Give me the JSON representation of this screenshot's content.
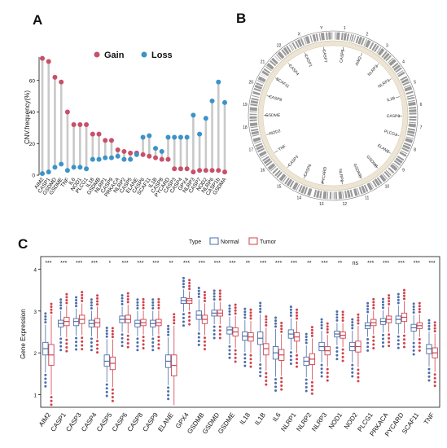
{
  "panels": {
    "a": "A",
    "b": "B",
    "c": "C"
  },
  "colors": {
    "gain": "#c8506a",
    "loss": "#3b93c8",
    "normal": "#4a6ea8",
    "tumor": "#d0414c",
    "stem": "#c9c9c9"
  },
  "chart_data": [
    {
      "type": "lollipop",
      "ylabel": "CNV.frequency(%)",
      "ylim": [
        0,
        80
      ],
      "yticks": [
        0,
        20,
        40,
        60
      ],
      "legend": [
        "Gain",
        "Loss"
      ],
      "legend_position": "top-center",
      "categories": [
        "AIM2",
        "CASP1",
        "GSDMD",
        "GSDME",
        "TNF",
        "IL6",
        "NOD1",
        "PLCG1",
        "IL18",
        "GSDMB",
        "NLRP1",
        "CASP9",
        "PRKACA",
        "NLRP2",
        "CASP5",
        "ELANE",
        "CASP6",
        "SCAF11",
        "IL1B",
        "CASP8",
        "PYCARD",
        "CASP3",
        "CASP4",
        "GPX4",
        "NLRP3",
        "CASP7",
        "NOD2",
        "NLRP6",
        "CASP1b",
        "GSDMA"
      ],
      "series": [
        {
          "name": "Gain",
          "values": [
            74,
            72,
            62,
            59,
            40,
            32,
            32,
            32,
            26,
            26,
            22,
            22,
            16,
            15,
            14,
            14,
            13,
            12,
            11,
            10,
            10,
            4,
            4,
            4,
            2,
            3,
            3,
            3,
            3,
            2
          ]
        },
        {
          "name": "Loss",
          "values": [
            1,
            2,
            5,
            7,
            3,
            5,
            5,
            4,
            10,
            10,
            11,
            11,
            12,
            10,
            10,
            13,
            24,
            25,
            17,
            15,
            24,
            24,
            24,
            24,
            38,
            26,
            36,
            47,
            59,
            46
          ]
        }
      ]
    },
    {
      "type": "circos",
      "chromosome_labels": [
        "1",
        "2",
        "3",
        "4",
        "5",
        "6",
        "7",
        "8",
        "9",
        "10",
        "11",
        "12",
        "13",
        "14",
        "15",
        "16",
        "17",
        "18",
        "19",
        "20",
        "21",
        "22",
        "X",
        "Y"
      ],
      "gene_labels": [
        "CASP5",
        "AIM2",
        "NLRP3",
        "NLRP1",
        "IL1B",
        "CASP8",
        "PLCG1",
        "ELANE",
        "GSDMB",
        "GSDMD",
        "NLRP6",
        "PYCARD",
        "CASP6",
        "CASP3",
        "TNF",
        "NOD2",
        "GSDME",
        "CASP9",
        "SCAF11",
        "CASP4",
        "CASP1",
        "CASP7"
      ]
    },
    {
      "type": "box",
      "ylabel": "Gene Expression",
      "xlabel": "",
      "ylim": [
        0.7,
        4.3
      ],
      "yticks": [
        1,
        2,
        3,
        4
      ],
      "legend_title": "Type",
      "legend": [
        "Normal",
        "Tumor"
      ],
      "legend_position": "top-center",
      "categories": [
        "AIM2",
        "CASP1",
        "CASP3",
        "CASP4",
        "CASP5",
        "CASP6",
        "CASP8",
        "CASP9",
        "ELANE",
        "GPX4",
        "GSDMB",
        "GSDMD",
        "GSDME",
        "IL18",
        "IL1B",
        "IL6",
        "NLRP1",
        "NLRP2",
        "NLRP3",
        "NOD1",
        "NOD2",
        "PLCG1",
        "PRKACA",
        "PYCARD",
        "SCAF11",
        "TNF"
      ],
      "significance": [
        "***",
        "***",
        "***",
        "***",
        "*",
        "***",
        "***",
        "***",
        "**",
        "***",
        "***",
        "***",
        "***",
        "**",
        "***",
        "***",
        "***",
        "**",
        "***",
        "**",
        "ns",
        "***",
        "***",
        "***",
        "***",
        "***"
      ],
      "series": [
        {
          "name": "Normal",
          "median": [
            2.1,
            2.7,
            2.75,
            2.7,
            1.8,
            2.8,
            2.7,
            2.7,
            1.8,
            3.25,
            2.9,
            2.95,
            2.55,
            2.4,
            2.35,
            2.0,
            2.45,
            1.8,
            2.15,
            2.45,
            2.15,
            2.65,
            2.75,
            2.8,
            2.6,
            2.1
          ],
          "q1": [
            1.95,
            2.62,
            2.65,
            2.62,
            1.68,
            2.72,
            2.62,
            2.62,
            1.65,
            3.18,
            2.8,
            2.88,
            2.45,
            2.3,
            2.2,
            1.85,
            2.35,
            1.7,
            2.05,
            2.38,
            2.05,
            2.58,
            2.68,
            2.7,
            2.52,
            1.98
          ],
          "q3": [
            2.25,
            2.78,
            2.82,
            2.78,
            1.95,
            2.88,
            2.78,
            2.78,
            1.95,
            3.32,
            3.0,
            3.02,
            2.62,
            2.5,
            2.5,
            2.15,
            2.55,
            1.9,
            2.25,
            2.52,
            2.25,
            2.72,
            2.82,
            2.88,
            2.68,
            2.2
          ]
        },
        {
          "name": "Tumor",
          "median": [
            1.95,
            2.75,
            2.8,
            2.72,
            1.75,
            2.8,
            2.72,
            2.72,
            1.7,
            3.25,
            2.8,
            2.95,
            2.5,
            2.38,
            2.1,
            1.95,
            2.38,
            1.85,
            2.05,
            2.42,
            2.15,
            2.72,
            2.8,
            2.85,
            2.65,
            2.0
          ],
          "q1": [
            1.7,
            2.65,
            2.7,
            2.62,
            1.6,
            2.72,
            2.65,
            2.65,
            1.45,
            3.18,
            2.7,
            2.88,
            2.4,
            2.28,
            1.95,
            1.82,
            2.28,
            1.72,
            1.95,
            2.35,
            2.02,
            2.65,
            2.72,
            2.75,
            2.58,
            1.88
          ],
          "q3": [
            2.2,
            2.85,
            2.9,
            2.82,
            1.9,
            2.9,
            2.8,
            2.8,
            1.95,
            3.3,
            2.9,
            3.02,
            2.6,
            2.48,
            2.22,
            2.08,
            2.48,
            1.98,
            2.15,
            2.5,
            2.28,
            2.8,
            2.88,
            2.95,
            2.72,
            2.12
          ]
        }
      ]
    }
  ]
}
